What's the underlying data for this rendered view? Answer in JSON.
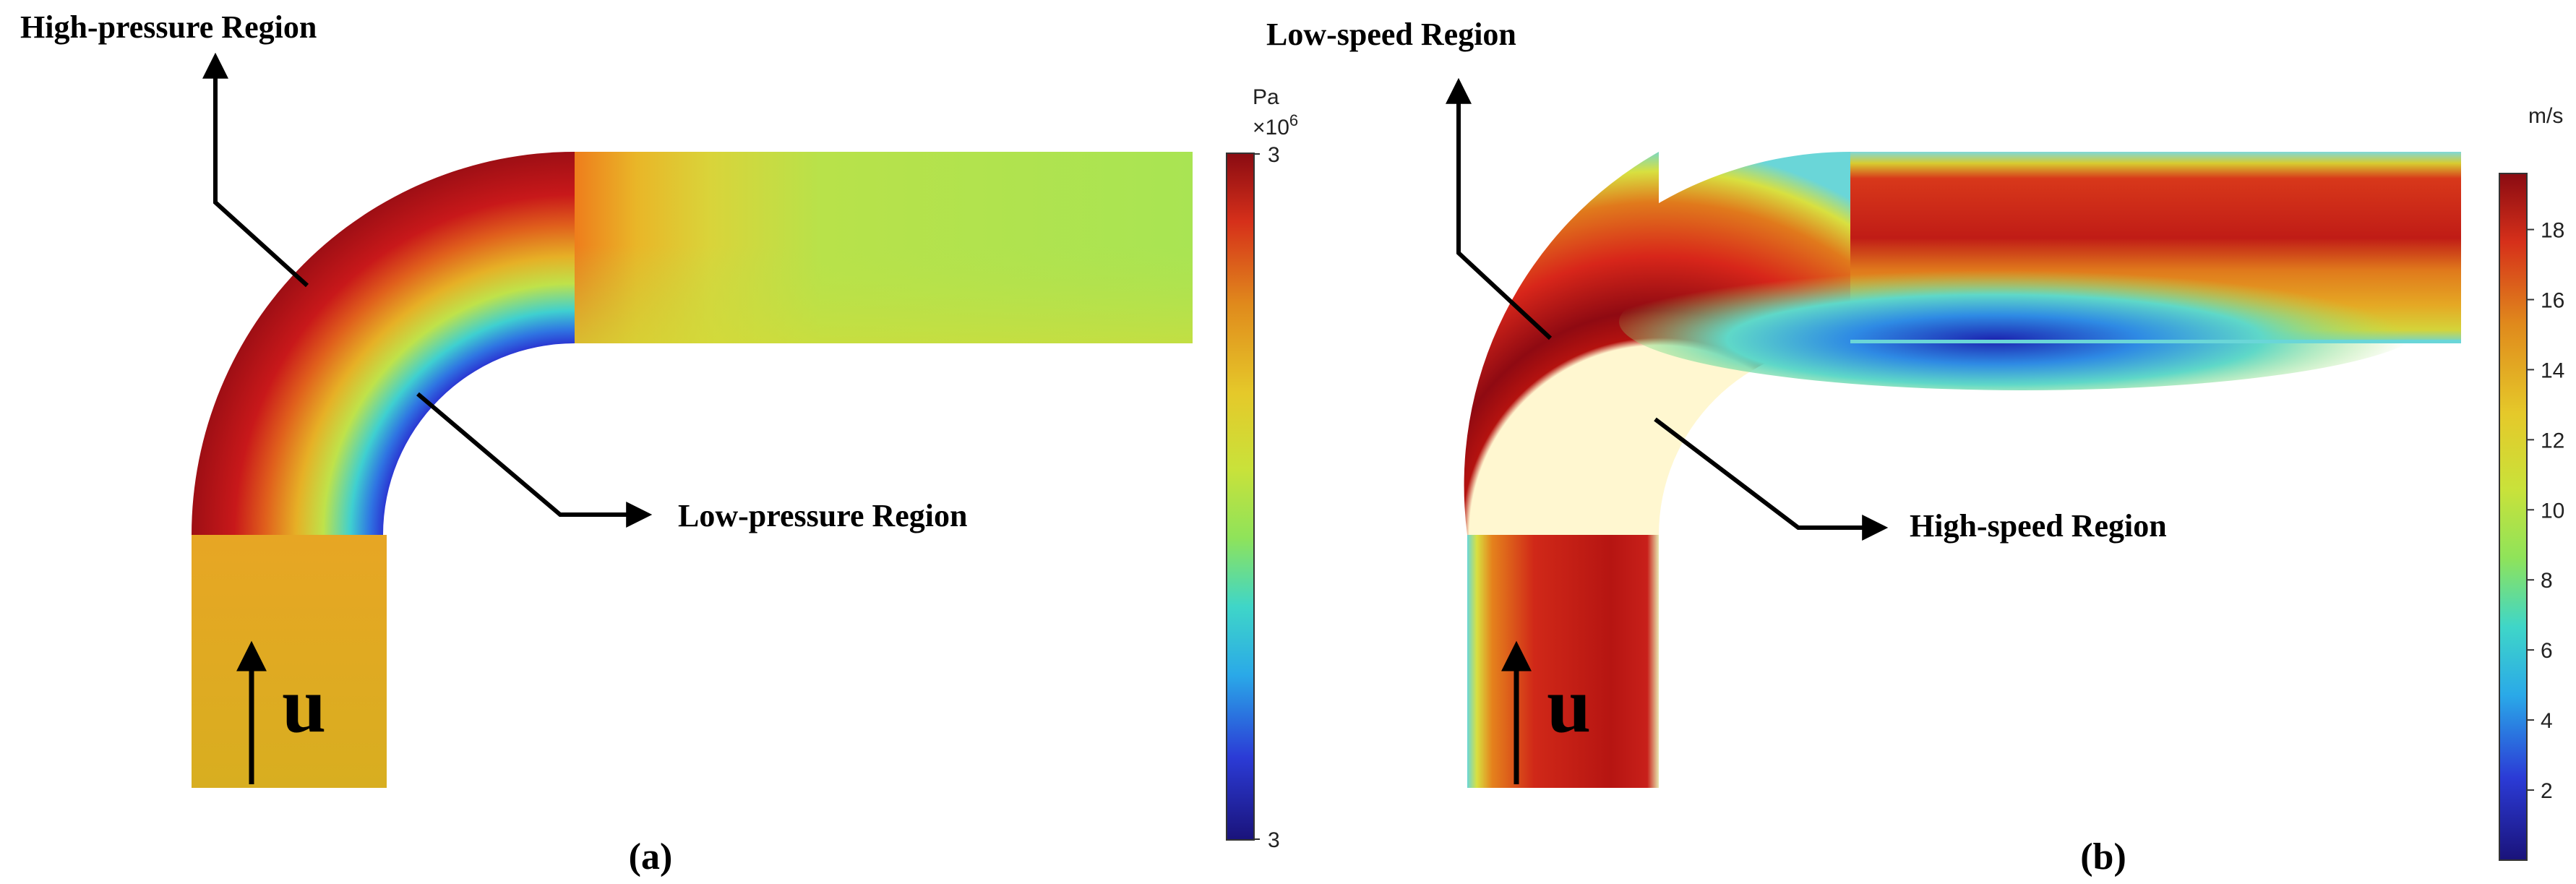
{
  "panel_a": {
    "caption": "(a)",
    "annotations": {
      "high": "High-pressure Region",
      "low": "Low-pressure Region",
      "flow": "u"
    },
    "colorbar": {
      "unit": "Pa",
      "multiplier_base": "×10",
      "multiplier_exp": "6",
      "max_label": "3",
      "min_label": "3"
    }
  },
  "panel_b": {
    "caption": "(b)",
    "annotations": {
      "low": "Low-speed Region",
      "high": "High-speed Region",
      "flow": "u"
    },
    "colorbar": {
      "unit": "m/s",
      "ticks": [
        "18",
        "16",
        "14",
        "12",
        "10",
        "8",
        "6",
        "4",
        "2"
      ]
    }
  },
  "colors": {
    "jet": [
      "#1a137a",
      "#2b3bd6",
      "#2aa9e8",
      "#3fd6c8",
      "#8fe35a",
      "#c9e23a",
      "#e5c92a",
      "#e08a1c",
      "#d6301a",
      "#8a0b12"
    ]
  }
}
